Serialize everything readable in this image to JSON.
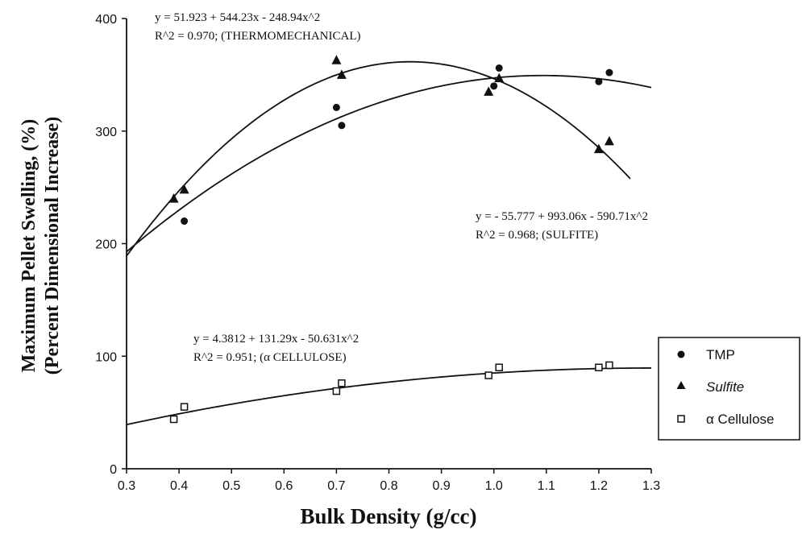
{
  "chart_data": {
    "type": "scatter",
    "xlabel": "Bulk Density (g/cc)",
    "ylabel_line1": "Maximum Pellet Swelling, (%)",
    "ylabel_line2": "(Percent Dimensional Increase)",
    "xlim": [
      0.3,
      1.3
    ],
    "ylim": [
      0,
      400
    ],
    "xticks": [
      "0.3",
      "0.4",
      "0.5",
      "0.6",
      "0.7",
      "0.8",
      "0.9",
      "1.0",
      "1.1",
      "1.2",
      "1.3"
    ],
    "yticks": [
      "0",
      "100",
      "200",
      "300",
      "400"
    ],
    "grid": false,
    "legend_position": "lower-right",
    "series": [
      {
        "name": "TMP",
        "marker": "circle",
        "points": [
          [
            0.41,
            220
          ],
          [
            0.7,
            321
          ],
          [
            0.71,
            305
          ],
          [
            1.0,
            340
          ],
          [
            1.01,
            356
          ],
          [
            1.2,
            344
          ],
          [
            1.22,
            352
          ]
        ],
        "fit": {
          "a": 51.923,
          "b": 544.23,
          "c": -248.94,
          "x_range": [
            0.3,
            1.3
          ]
        },
        "equation": "y = 51.923 + 544.23x - 248.94x^2",
        "r2": "R^2 = 0.970; (THERMOMECHANICAL)"
      },
      {
        "name": "Sulfite",
        "marker": "triangle",
        "points": [
          [
            0.39,
            240
          ],
          [
            0.41,
            248
          ],
          [
            0.7,
            363
          ],
          [
            0.71,
            350
          ],
          [
            0.99,
            335
          ],
          [
            1.01,
            347
          ],
          [
            1.2,
            284
          ],
          [
            1.22,
            291
          ]
        ],
        "fit": {
          "a": -55.777,
          "b": 993.06,
          "c": -590.71,
          "x_range": [
            0.3,
            1.26
          ]
        },
        "equation": "y =  - 55.777 + 993.06x - 590.71x^2",
        "r2": "R^2 = 0.968; (SULFITE)"
      },
      {
        "name": "α Cellulose",
        "marker": "square",
        "points": [
          [
            0.39,
            44
          ],
          [
            0.41,
            55
          ],
          [
            0.7,
            69
          ],
          [
            0.71,
            76
          ],
          [
            0.99,
            83
          ],
          [
            1.01,
            90
          ],
          [
            1.2,
            90
          ],
          [
            1.22,
            92
          ]
        ],
        "fit": {
          "a": 4.3812,
          "b": 131.29,
          "c": -50.631,
          "x_range": [
            0.3,
            1.3
          ]
        },
        "equation": "y = 4.3812 + 131.29x - 50.631x^2",
        "r2": "R^2 = 0.951; (α CELLULOSE)"
      }
    ]
  }
}
